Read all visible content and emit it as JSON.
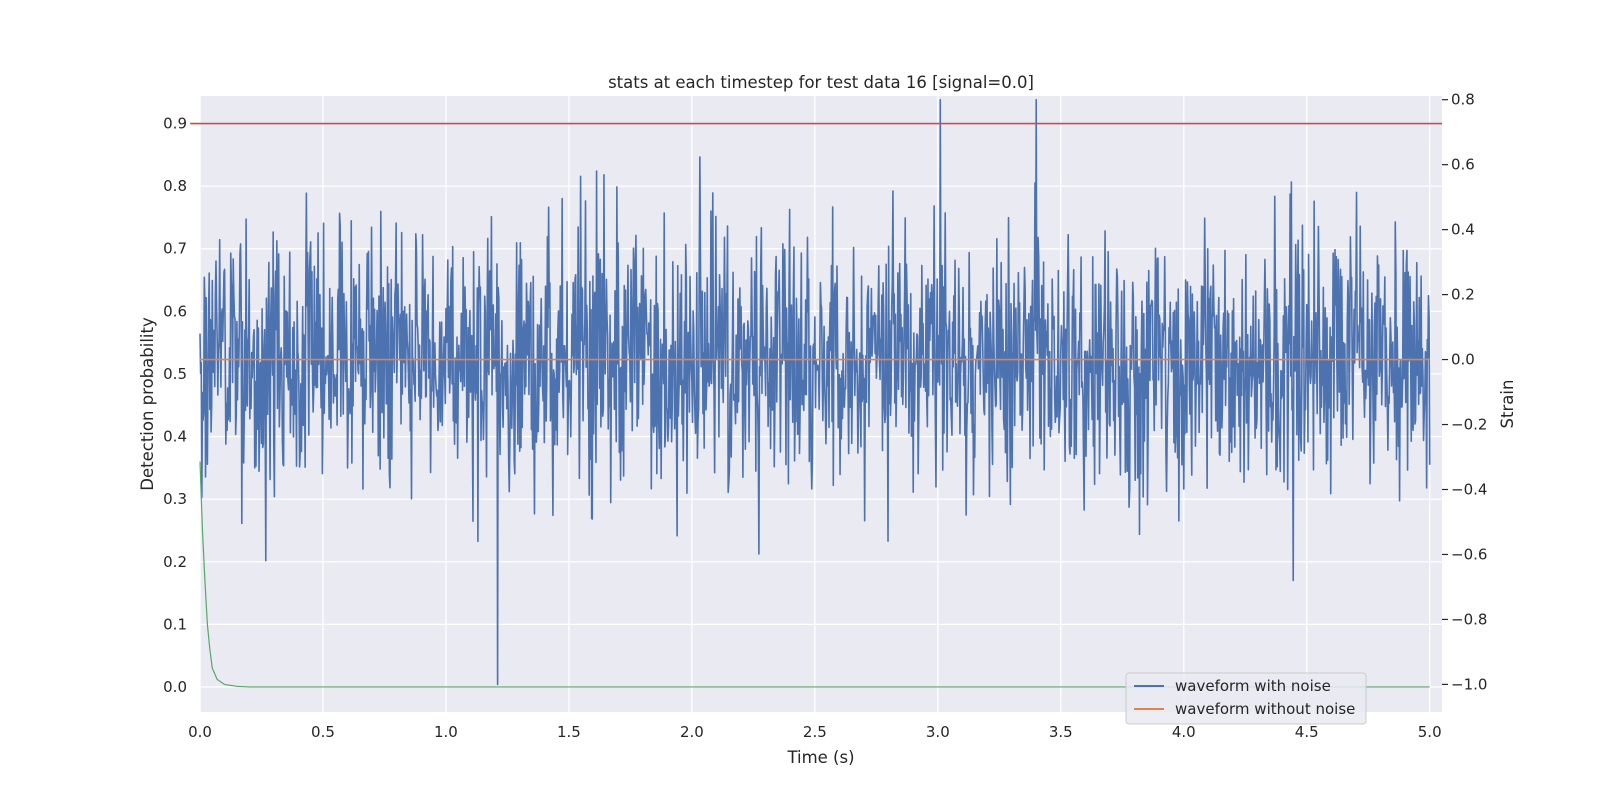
{
  "chart_data": {
    "type": "line",
    "title": "stats at each timestep for test data 16 [signal=0.0]",
    "xlabel": "Time (s)",
    "ylabel_left": "Detection probability",
    "ylabel_right": "Strain",
    "xlim": [
      0.0,
      5.05
    ],
    "ylim_left": [
      -0.04,
      0.944
    ],
    "ylim_right": [
      -1.085,
      0.8114
    ],
    "x_ticks": [
      "0.0",
      "0.5",
      "1.0",
      "1.5",
      "2.0",
      "2.5",
      "3.0",
      "3.5",
      "4.0",
      "4.5",
      "5.0"
    ],
    "x_tick_values": [
      0.0,
      0.5,
      1.0,
      1.5,
      2.0,
      2.5,
      3.0,
      3.5,
      4.0,
      4.5,
      5.0
    ],
    "y_left_ticks": [
      "0.0",
      "0.1",
      "0.2",
      "0.3",
      "0.4",
      "0.5",
      "0.6",
      "0.7",
      "0.8",
      "0.9"
    ],
    "y_left_tick_values": [
      0.0,
      0.1,
      0.2,
      0.3,
      0.4,
      0.5,
      0.6,
      0.7,
      0.8,
      0.9
    ],
    "y_right_ticks": [
      "−1.0",
      "−0.8",
      "−0.6",
      "−0.4",
      "−0.2",
      "0.0",
      "0.2",
      "0.4",
      "0.6",
      "0.8"
    ],
    "y_right_tick_values": [
      -1.0,
      -0.8,
      -0.6,
      -0.4,
      -0.2,
      0.0,
      0.2,
      0.4,
      0.6,
      0.8
    ],
    "grid": true,
    "legend_position": "lower-right",
    "series": [
      {
        "name": "waveform with noise",
        "axis": "right",
        "color": "#4c72b0",
        "points": [
          [
            0.0,
            0.08
          ],
          [
            1.21,
            -1.0
          ],
          [
            3.01,
            0.8
          ],
          [
            3.4,
            0.8
          ]
        ],
        "noise_std": 0.2
      },
      {
        "name": "waveform without noise",
        "axis": "right",
        "color": "#dd8452",
        "points": [
          [
            0.0,
            0.0
          ],
          [
            5.0,
            0.0
          ]
        ]
      },
      {
        "axis": "left",
        "color": "#55a868",
        "points": [
          [
            0.0,
            0.36
          ],
          [
            0.01,
            0.25
          ],
          [
            0.02,
            0.17
          ],
          [
            0.03,
            0.1
          ],
          [
            0.04,
            0.06
          ],
          [
            0.05,
            0.03
          ],
          [
            0.07,
            0.012
          ],
          [
            0.1,
            0.004
          ],
          [
            0.15,
            0.001
          ],
          [
            0.2,
            0.0
          ],
          [
            5.0,
            0.0
          ]
        ]
      },
      {
        "axis": "left",
        "color": "#c44e52",
        "points": [
          [
            -0.04,
            0.9
          ],
          [
            5.05,
            0.9
          ]
        ]
      }
    ]
  }
}
